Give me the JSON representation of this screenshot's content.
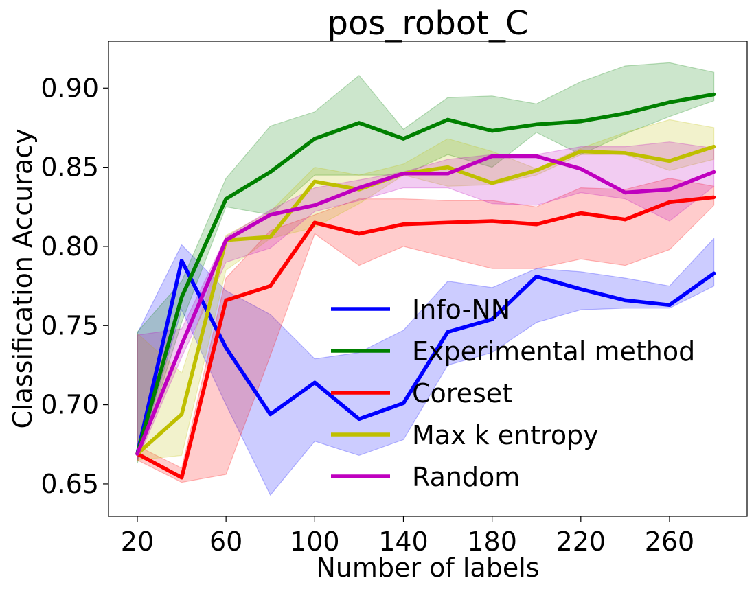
{
  "chart_data": {
    "type": "line",
    "title": "pos_robot_C",
    "xlabel": "Number of labels",
    "ylabel": "Classification Accuracy",
    "xlim": [
      7,
      295
    ],
    "ylim": [
      0.6296,
      0.9296
    ],
    "xticks": [
      20,
      60,
      100,
      140,
      180,
      220,
      260
    ],
    "yticks": [
      0.65,
      0.7,
      0.75,
      0.8,
      0.85,
      0.9
    ],
    "ytick_labels": [
      "0.65",
      "0.70",
      "0.75",
      "0.80",
      "0.85",
      "0.90"
    ],
    "legend_position": "lower-right",
    "x": [
      20,
      40,
      60,
      80,
      100,
      120,
      140,
      160,
      180,
      200,
      220,
      240,
      260,
      280
    ],
    "series": [
      {
        "name": "Info-NN",
        "color": "#0000ff",
        "values": [
          0.669,
          0.791,
          0.736,
          0.694,
          0.714,
          0.691,
          0.701,
          0.746,
          0.754,
          0.781,
          0.773,
          0.766,
          0.763,
          0.783
        ],
        "upper": [
          0.745,
          0.801,
          0.772,
          0.757,
          0.729,
          0.733,
          0.747,
          0.778,
          0.774,
          0.786,
          0.784,
          0.78,
          0.775,
          0.805
        ],
        "lower": [
          0.665,
          0.76,
          0.7,
          0.643,
          0.677,
          0.668,
          0.678,
          0.725,
          0.733,
          0.752,
          0.76,
          0.761,
          0.761,
          0.775
        ]
      },
      {
        "name": "Experimental method",
        "color": "#008000",
        "values": [
          0.669,
          0.768,
          0.83,
          0.847,
          0.868,
          0.878,
          0.868,
          0.88,
          0.873,
          0.877,
          0.879,
          0.884,
          0.891,
          0.896
        ],
        "upper": [
          0.746,
          0.778,
          0.843,
          0.876,
          0.885,
          0.908,
          0.874,
          0.894,
          0.895,
          0.89,
          0.904,
          0.914,
          0.916,
          0.91
        ],
        "lower": [
          0.663,
          0.752,
          0.825,
          0.82,
          0.845,
          0.845,
          0.845,
          0.858,
          0.85,
          0.872,
          0.858,
          0.871,
          0.882,
          0.892
        ]
      },
      {
        "name": "Coreset",
        "color": "#ff0000",
        "values": [
          0.669,
          0.654,
          0.766,
          0.775,
          0.815,
          0.808,
          0.814,
          0.815,
          0.816,
          0.814,
          0.821,
          0.817,
          0.828,
          0.831
        ],
        "upper": [
          0.674,
          0.66,
          0.78,
          0.81,
          0.82,
          0.83,
          0.83,
          0.829,
          0.829,
          0.825,
          0.837,
          0.836,
          0.843,
          0.838
        ],
        "lower": [
          0.665,
          0.651,
          0.656,
          0.731,
          0.808,
          0.788,
          0.8,
          0.793,
          0.786,
          0.786,
          0.792,
          0.788,
          0.798,
          0.826
        ]
      },
      {
        "name": "Max k entropy",
        "color": "#bfbf00",
        "values": [
          0.669,
          0.694,
          0.804,
          0.806,
          0.841,
          0.836,
          0.846,
          0.85,
          0.84,
          0.848,
          0.86,
          0.859,
          0.854,
          0.863
        ],
        "upper": [
          0.745,
          0.72,
          0.807,
          0.822,
          0.85,
          0.845,
          0.852,
          0.868,
          0.86,
          0.849,
          0.862,
          0.872,
          0.88,
          0.875
        ],
        "lower": [
          0.665,
          0.668,
          0.785,
          0.805,
          0.812,
          0.827,
          0.845,
          0.838,
          0.839,
          0.845,
          0.858,
          0.858,
          0.848,
          0.855
        ]
      },
      {
        "name": "Random",
        "color": "#bf00bf",
        "values": [
          0.669,
          0.738,
          0.804,
          0.82,
          0.826,
          0.837,
          0.846,
          0.846,
          0.857,
          0.857,
          0.849,
          0.834,
          0.836,
          0.847
        ],
        "upper": [
          0.744,
          0.748,
          0.806,
          0.823,
          0.837,
          0.842,
          0.847,
          0.855,
          0.858,
          0.858,
          0.863,
          0.863,
          0.866,
          0.862
        ],
        "lower": [
          0.665,
          0.73,
          0.79,
          0.799,
          0.822,
          0.829,
          0.837,
          0.837,
          0.827,
          0.826,
          0.834,
          0.83,
          0.816,
          0.838
        ]
      }
    ]
  }
}
